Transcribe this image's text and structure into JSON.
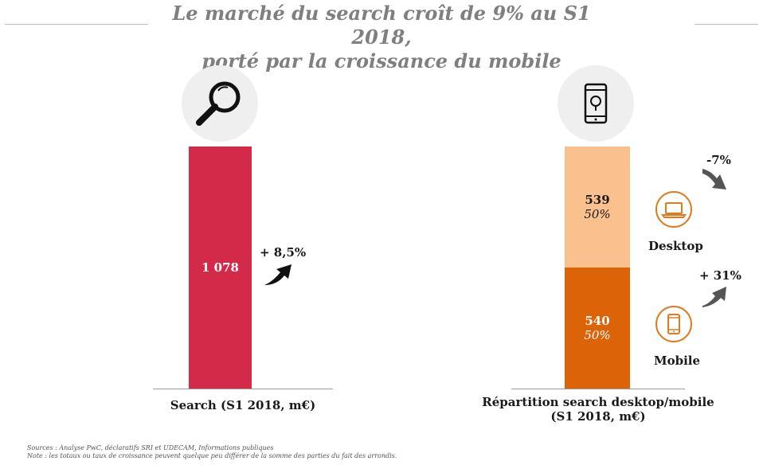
{
  "title": {
    "line1": "Le marché du search croît de 9% au S1 2018,",
    "line2": "porté par la croissance du mobile"
  },
  "icons": {
    "left": "magnifying-glass-icon",
    "right": "smartphone-icon",
    "desktop": "laptop-icon",
    "mobile": "mobile-phone-icon",
    "arrow_up": "curved-arrow-up-icon",
    "arrow_down": "curved-arrow-down-icon"
  },
  "colors": {
    "search_bar": "#D42A4A",
    "desktop_bar": "#FAC08D",
    "mobile_bar": "#DD6308",
    "device_icon": "#E07A1F"
  },
  "chart_data": [
    {
      "type": "bar",
      "categories": [
        "Search (S1 2018, m€)"
      ],
      "values": [
        1078
      ],
      "value_labels": [
        "1 078"
      ],
      "annotations": [
        {
          "text": "+ 8,5%"
        }
      ],
      "xlabel": "Search (S1 2018, m€)",
      "ylabel": "",
      "ylim": [
        0,
        1078
      ],
      "grid": false
    },
    {
      "type": "bar",
      "stacked": true,
      "categories": [
        "Répartition search desktop/mobile (S1 2018, m€)"
      ],
      "series": [
        {
          "name": "Mobile",
          "values": [
            540
          ],
          "value_labels": [
            "540"
          ],
          "share_labels": [
            "50%"
          ],
          "growth": "+ 31%"
        },
        {
          "name": "Desktop",
          "values": [
            539
          ],
          "value_labels": [
            "539"
          ],
          "share_labels": [
            "50%"
          ],
          "growth": "-7%"
        }
      ],
      "xlabel_line1": "Répartition search desktop/mobile",
      "xlabel_line2": "(S1 2018, m€)",
      "ylabel": "",
      "ylim": [
        0,
        1079
      ],
      "grid": false
    }
  ],
  "footnote": {
    "sources": "Sources : Analyse PwC, déclaratifs SRI et UDECAM, Informations publiques",
    "note": "Note : les totaux ou taux de croissance peuvent quelque peu différer de la somme des parties du fait des arrondis."
  }
}
